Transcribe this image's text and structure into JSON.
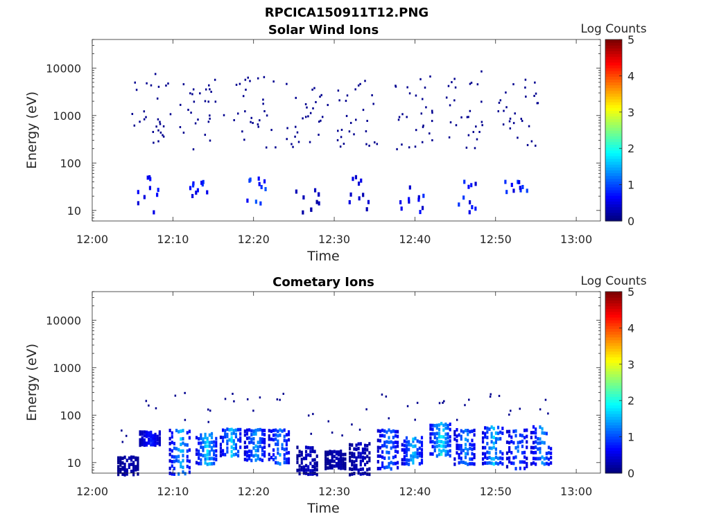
{
  "figure_title": "RPCICA150911T12.PNG",
  "chart_data": [
    {
      "type": "heatmap",
      "title": "Solar Wind Ions",
      "xlabel": "Time",
      "ylabel": "Energy (eV)",
      "x_ticks": [
        "12:00",
        "12:10",
        "12:20",
        "12:30",
        "12:40",
        "12:50",
        "13:00"
      ],
      "x_range_minutes": [
        0,
        63
      ],
      "y_scale": "log",
      "y_range": [
        6,
        40000
      ],
      "y_ticks": [
        "10",
        "100",
        "1000",
        "10000"
      ],
      "colorbar": {
        "label": "Log Counts",
        "range": [
          0,
          5
        ],
        "ticks": [
          "0",
          "1",
          "2",
          "3",
          "4",
          "5"
        ],
        "colormap": "jet"
      },
      "bursts": [
        {
          "t": 7.0,
          "hi_e": 8000,
          "lo_e": [
            10,
            60
          ],
          "peak_log": 0.9
        },
        {
          "t": 13.5,
          "hi_e": 6000,
          "lo_e": [
            20,
            45
          ],
          "peak_log": 1.0
        },
        {
          "t": 20.0,
          "hi_e": 7000,
          "lo_e": [
            15,
            60
          ],
          "peak_log": 1.1
        },
        {
          "t": 26.5,
          "hi_e": 5000,
          "lo_e": [
            10,
            30
          ],
          "peak_log": 0.4
        },
        {
          "t": 33.0,
          "hi_e": 6000,
          "lo_e": [
            8,
            60
          ],
          "peak_log": 0.6
        },
        {
          "t": 39.5,
          "hi_e": 8000,
          "lo_e": [
            10,
            40
          ],
          "peak_log": 0.9
        },
        {
          "t": 46.0,
          "hi_e": 9000,
          "lo_e": [
            10,
            45
          ],
          "peak_log": 0.9
        },
        {
          "t": 52.5,
          "hi_e": 7000,
          "lo_e": [
            25,
            45
          ],
          "peak_log": 1.0
        }
      ]
    },
    {
      "type": "heatmap",
      "title": "Cometary Ions",
      "xlabel": "Time",
      "ylabel": "Energy (eV)",
      "x_ticks": [
        "12:00",
        "12:10",
        "12:20",
        "12:30",
        "12:40",
        "12:50",
        "13:00"
      ],
      "x_range_minutes": [
        0,
        63
      ],
      "y_scale": "log",
      "y_range": [
        6,
        40000
      ],
      "y_ticks": [
        "10",
        "100",
        "1000",
        "10000"
      ],
      "colorbar": {
        "label": "Log Counts",
        "range": [
          0,
          5
        ],
        "ticks": [
          "0",
          "1",
          "2",
          "3",
          "4",
          "5"
        ],
        "colormap": "jet"
      },
      "bursts": [
        {
          "t": 4.3,
          "lo": 6,
          "hi": 15,
          "peak_log": 0.3
        },
        {
          "t": 7.0,
          "lo": 25,
          "hi": 50,
          "peak_log": 0.9
        },
        {
          "t": 10.7,
          "lo": 6,
          "hi": 60,
          "peak_log": 1.8
        },
        {
          "t": 14.0,
          "lo": 10,
          "hi": 50,
          "peak_log": 1.9
        },
        {
          "t": 17.0,
          "lo": 15,
          "hi": 60,
          "peak_log": 1.8
        },
        {
          "t": 20.0,
          "lo": 12,
          "hi": 60,
          "peak_log": 1.6
        },
        {
          "t": 23.0,
          "lo": 10,
          "hi": 60,
          "peak_log": 1.5
        },
        {
          "t": 26.5,
          "lo": 6,
          "hi": 25,
          "peak_log": 0.4
        },
        {
          "t": 30.0,
          "lo": 8,
          "hi": 20,
          "peak_log": 0.3
        },
        {
          "t": 33.0,
          "lo": 6,
          "hi": 30,
          "peak_log": 0.4
        },
        {
          "t": 36.5,
          "lo": 8,
          "hi": 60,
          "peak_log": 1.4
        },
        {
          "t": 39.5,
          "lo": 10,
          "hi": 40,
          "peak_log": 1.7
        },
        {
          "t": 43.0,
          "lo": 15,
          "hi": 80,
          "peak_log": 2.1
        },
        {
          "t": 46.0,
          "lo": 10,
          "hi": 60,
          "peak_log": 1.5
        },
        {
          "t": 49.5,
          "lo": 10,
          "hi": 70,
          "peak_log": 1.8
        },
        {
          "t": 52.5,
          "lo": 8,
          "hi": 60,
          "peak_log": 1.3
        },
        {
          "t": 55.5,
          "lo": 10,
          "hi": 70,
          "peak_log": 1.5
        }
      ]
    }
  ]
}
